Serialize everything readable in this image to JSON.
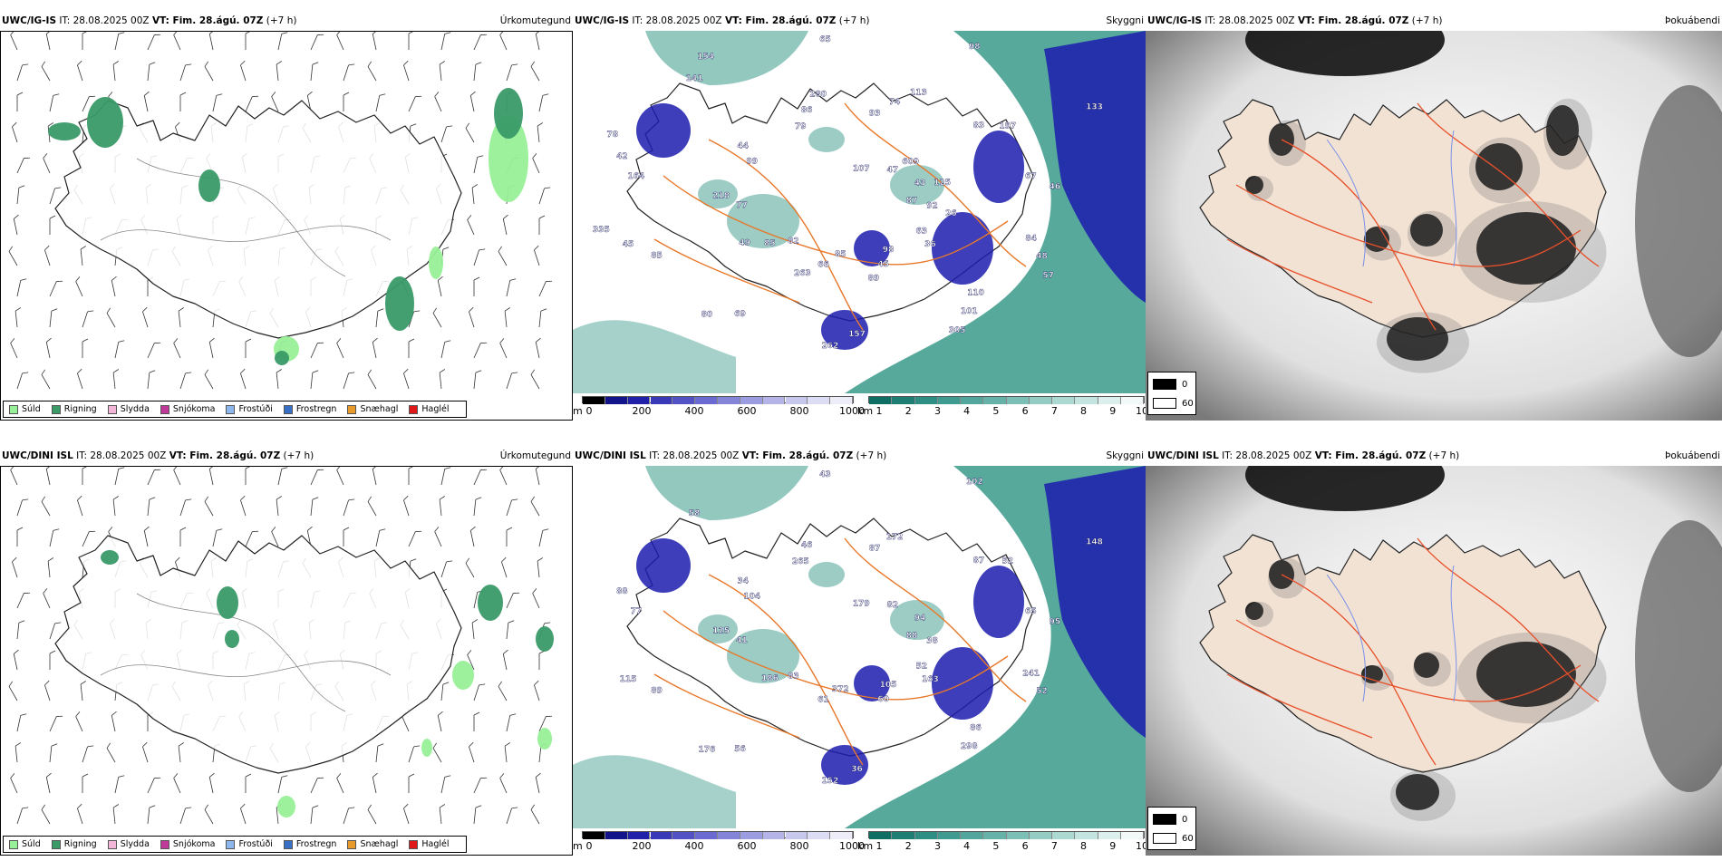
{
  "colors": {
    "sudd": "#98f098",
    "rigning": "#3a9a68",
    "slydda": "#f4b6d8",
    "snjokoma": "#c0389a",
    "frostudi": "#8cb8ee",
    "frostregn": "#3870c8",
    "snaehagl": "#e89a2a",
    "hagl": "#e01818",
    "vis_low": "#1c1cae",
    "vis_mid": "#3a9a8a",
    "vis_high": "#cfe8e4",
    "roads": "#e8782a",
    "fog_dark": "#000000",
    "land_fog": "#f2e2d4"
  },
  "rows": [
    {
      "model": "UWC/IG-IS",
      "it": "IT: 28.08.2025 00Z",
      "vt": "VT: Fim. 28.ágú. 07Z",
      "lead": "(+7 h)",
      "panel_titles": [
        "Úrkomutegund",
        "Skyggni",
        "Þokuábendi"
      ],
      "vis_labels": [
        "87",
        "82",
        "93",
        "110",
        "164",
        "133",
        "85",
        "79",
        "84",
        "85",
        "98",
        "98",
        "99",
        "67",
        "69",
        "65",
        "63",
        "77",
        "83",
        "157",
        "141",
        "92",
        "85",
        "74",
        "101",
        "42",
        "43",
        "66",
        "86",
        "48",
        "45",
        "47",
        "45",
        "44",
        "46",
        "80",
        "107",
        "36",
        "218",
        "197",
        "262",
        "154",
        "26",
        "49",
        "113",
        "305",
        "78",
        "125",
        "263",
        "280",
        "57",
        "335",
        "609",
        "89"
      ]
    },
    {
      "model": "UWC/DINI ISL",
      "it": "IT: 28.08.2025 00Z",
      "vt": "VT: Fim. 28.ágú. 07Z",
      "lead": "(+7 h)",
      "panel_titles": [
        "Úrkomutegund",
        "Skyggni",
        "Þokuábendi"
      ],
      "vis_labels": [
        "88",
        "83",
        "87",
        "86",
        "77",
        "148",
        "372",
        "265",
        "241",
        "89",
        "102",
        "105",
        "104",
        "65",
        "56",
        "43",
        "52",
        "41",
        "87",
        "36",
        "58",
        "38",
        "186",
        "172",
        "298",
        "88",
        "94",
        "61",
        "46",
        "52",
        "115",
        "82",
        "60",
        "34",
        "95",
        "176",
        "179",
        "163",
        "125",
        "52",
        "152"
      ]
    }
  ],
  "precip_legend": [
    "Súld",
    "Rigning",
    "Slydda",
    "Snjókoma",
    "Frostúði",
    "Frostregn",
    "Snæhagl",
    "Haglél"
  ],
  "vis_alt_unit": "m",
  "vis_alt_ticks": [
    "0",
    "200",
    "400",
    "600",
    "800",
    "1000"
  ],
  "vis_km_unit": "km",
  "vis_km_ticks": [
    "1",
    "2",
    "3",
    "4",
    "5",
    "6",
    "7",
    "8",
    "9",
    "10"
  ],
  "fog_legend": [
    "0",
    "60"
  ]
}
